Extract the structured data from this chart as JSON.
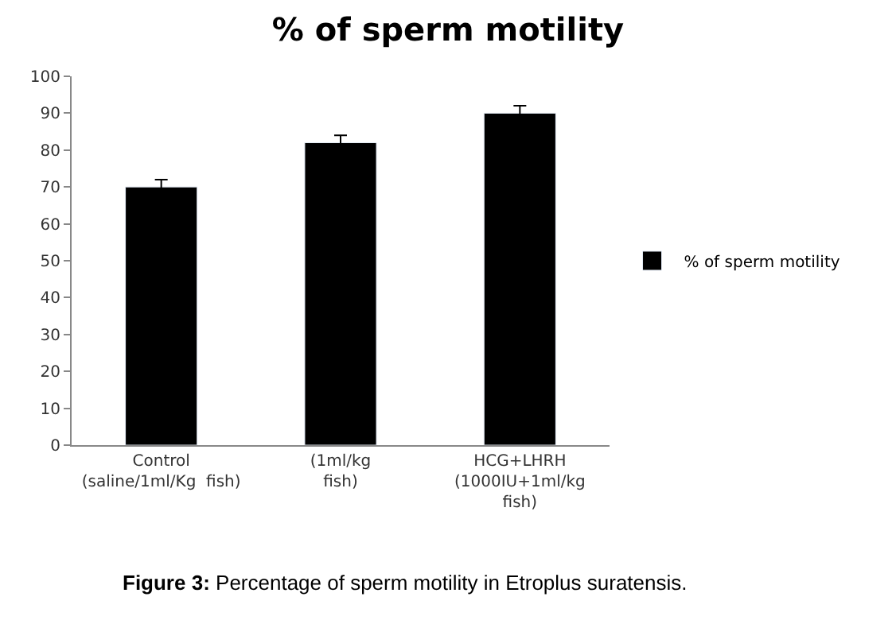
{
  "chart_data": {
    "type": "bar",
    "title": "% of sperm motility",
    "categories": [
      "Control\n(saline/1ml/Kg  fish)",
      "(1ml/kg\nfish)",
      "HCG+LHRH\n(1000IU+1ml/kg\nfish)"
    ],
    "series": [
      {
        "name": "% of sperm motility",
        "color": "#000000",
        "values": [
          70,
          82,
          90
        ],
        "errors": [
          2,
          2,
          2
        ]
      }
    ],
    "ylim": [
      0,
      100
    ],
    "yticks": [
      0,
      10,
      20,
      30,
      40,
      50,
      60,
      70,
      80,
      90,
      100
    ],
    "legend": "right",
    "annotations": [
      "Figure 3: Percentage of sperm motility in Etroplus suratensis."
    ]
  }
}
